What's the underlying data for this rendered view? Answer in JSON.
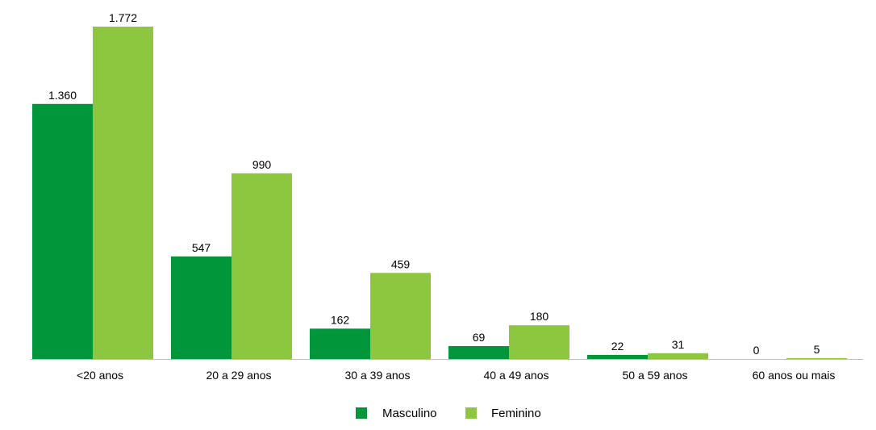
{
  "chart_data": {
    "type": "bar",
    "title": "",
    "xlabel": "",
    "ylabel": "",
    "categories": [
      "<20 anos",
      "20 a 29 anos",
      "30 a 39 anos",
      "40 a 49 anos",
      "50 a 59 anos",
      "60 anos ou mais"
    ],
    "series": [
      {
        "name": "Masculino",
        "color": "#009639",
        "values": [
          1360,
          547,
          162,
          69,
          22,
          0
        ],
        "labels": [
          "1.360",
          "547",
          "162",
          "69",
          "22",
          "0"
        ]
      },
      {
        "name": "Feminino",
        "color": "#8dc63f",
        "values": [
          1772,
          990,
          459,
          180,
          31,
          5
        ],
        "labels": [
          "1.772",
          "990",
          "459",
          "180",
          "31",
          "5"
        ]
      }
    ],
    "ylim": [
      0,
      1772
    ],
    "grid": false,
    "legend": "bottom-center"
  }
}
